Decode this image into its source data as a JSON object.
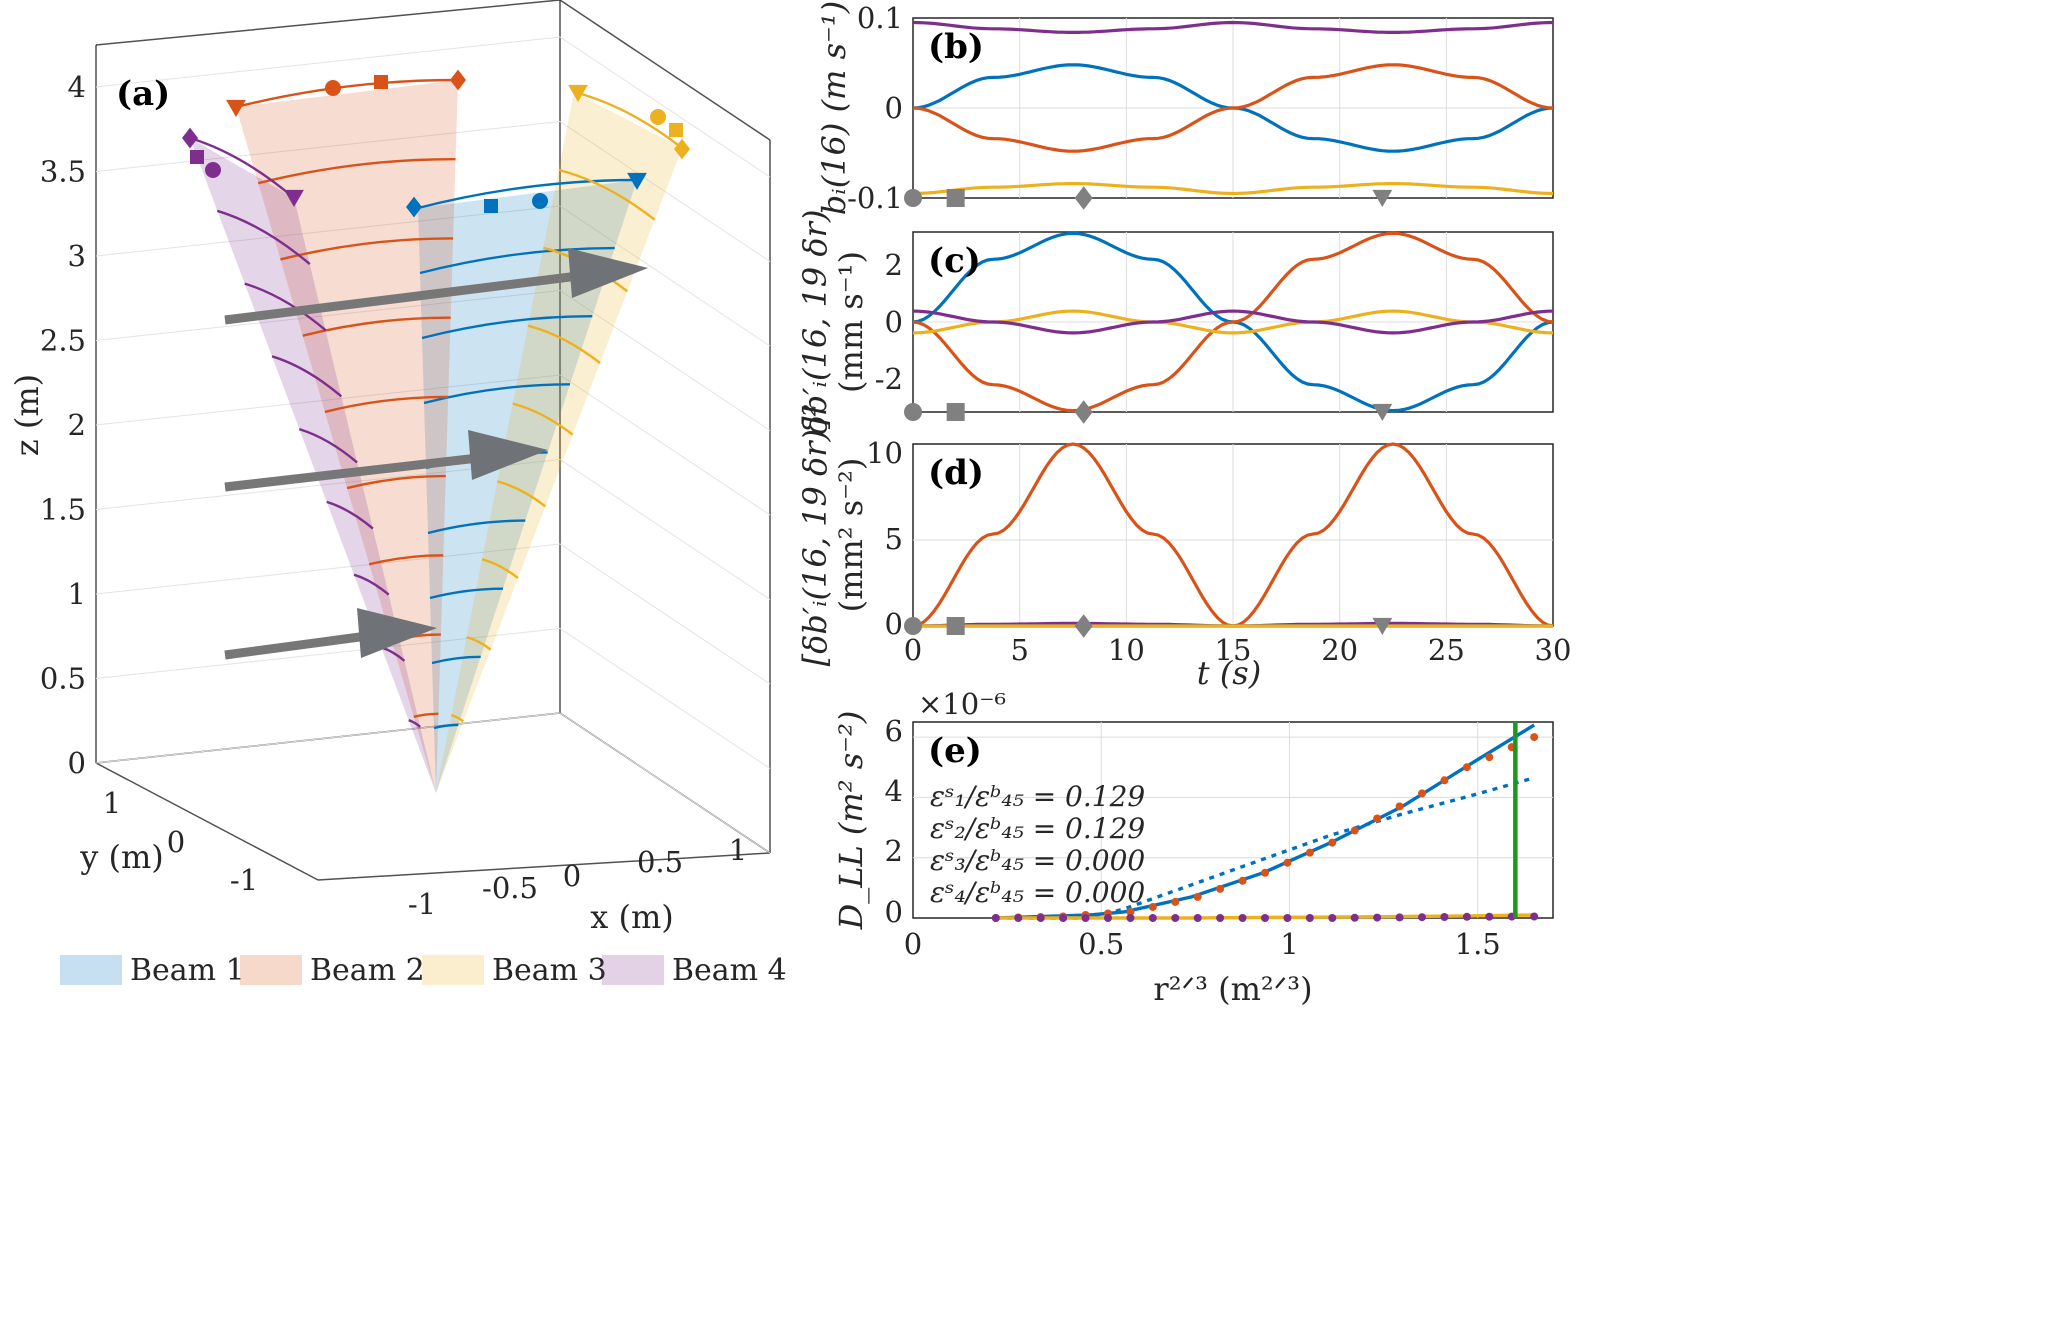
{
  "colors": {
    "beam1": "#0072BD",
    "beam2": "#D95319",
    "beam3": "#EDB120",
    "beam4": "#7E2F8E",
    "marker": "#808080",
    "vertical_line": "#1a9a1a"
  },
  "panel_a": {
    "label": "(a)",
    "xlabel": "x (m)",
    "ylabel": "y (m)",
    "zlabel": "z (m)",
    "xticks": [
      "-1",
      "-0.5",
      "0",
      "0.5",
      "1"
    ],
    "yticks": [
      "1",
      "0",
      "-1"
    ],
    "zticks": [
      "0",
      "0.5",
      "1",
      "1.5",
      "2",
      "2.5",
      "3",
      "3.5",
      "4"
    ],
    "legend": [
      "Beam 1",
      "Beam 2",
      "Beam 3",
      "Beam 4"
    ]
  },
  "panel_b": {
    "label": "(b)",
    "ylabel": "bᵢ(16) (m s⁻¹)",
    "yticks": [
      "0.1",
      "0",
      "-0.1"
    ]
  },
  "panel_c": {
    "label": "(c)",
    "ylabel_line1": "δb′ᵢ(16, 19 δr)",
    "ylabel_line2": "(mm s⁻¹)",
    "yticks": [
      "2",
      "0",
      "-2"
    ]
  },
  "panel_d": {
    "label": "(d)",
    "ylabel_line1": "[δb′ᵢ(16, 19 δr)]²",
    "ylabel_line2": "(mm² s⁻²)",
    "yticks": [
      "10",
      "5",
      "0"
    ],
    "xticks": [
      "0",
      "5",
      "10",
      "15",
      "20",
      "25",
      "30"
    ],
    "xlabel": "t (s)"
  },
  "panel_e": {
    "label": "(e)",
    "exponent": "×10⁻⁶",
    "ylabel": "D_LL (m² s⁻²)",
    "xlabel": "r²ᐟ³ (m²ᐟ³)",
    "yticks": [
      "6",
      "4",
      "2",
      "0"
    ],
    "xticks": [
      "0",
      "0.5",
      "1",
      "1.5"
    ],
    "ratios": [
      "εˢ₁/εᵇ₄₅ = 0.129",
      "εˢ₂/εᵇ₄₅ = 0.129",
      "εˢ₃/εᵇ₄₅ = 0.000",
      "εˢ₄/εᵇ₄₅ = 0.000"
    ]
  },
  "chart_data": [
    {
      "panel": "a",
      "type": "scatter",
      "title": "",
      "description_3d": "Four conical beams from origin to z about 4 m, with range-gate arcs and three grey mean-flow arrows at z about 0.8, 1.7, 2.7 m",
      "xlim": [
        -1.2,
        1.2
      ],
      "ylim": [
        -1.2,
        1.2
      ],
      "zlim": [
        0,
        4.2
      ],
      "series": [
        {
          "name": "Beam 1"
        },
        {
          "name": "Beam 2"
        },
        {
          "name": "Beam 3"
        },
        {
          "name": "Beam 4"
        }
      ]
    },
    {
      "panel": "b",
      "type": "line",
      "xlim": [
        0,
        30
      ],
      "ylim": [
        -0.1,
        0.1
      ],
      "x": [
        0,
        3.75,
        7.5,
        11.25,
        15,
        18.75,
        22.5,
        26.25,
        30
      ],
      "series": [
        {
          "color": "beam1",
          "values": [
            0,
            0.034,
            0.048,
            0.034,
            0,
            -0.034,
            -0.048,
            -0.034,
            0
          ]
        },
        {
          "color": "beam2",
          "values": [
            0,
            -0.034,
            -0.048,
            -0.034,
            0,
            0.034,
            0.048,
            0.034,
            0
          ]
        },
        {
          "color": "beam3",
          "values": [
            -0.095,
            -0.088,
            -0.084,
            -0.088,
            -0.095,
            -0.088,
            -0.084,
            -0.088,
            -0.095
          ]
        },
        {
          "color": "beam4",
          "values": [
            0.095,
            0.088,
            0.084,
            0.088,
            0.095,
            0.088,
            0.084,
            0.088,
            0.095
          ]
        }
      ],
      "markers": [
        {
          "shape": "circle",
          "t": 0
        },
        {
          "shape": "square",
          "t": 2
        },
        {
          "shape": "diamond",
          "t": 8
        },
        {
          "shape": "triangle",
          "t": 22
        }
      ]
    },
    {
      "panel": "c",
      "type": "line",
      "xlim": [
        0,
        30
      ],
      "ylim": [
        -3.3,
        3.3
      ],
      "x": [
        0,
        3.75,
        7.5,
        11.25,
        15,
        18.75,
        22.5,
        26.25,
        30
      ],
      "series": [
        {
          "color": "beam1",
          "values": [
            0,
            2.3,
            3.25,
            2.3,
            0,
            -2.3,
            -3.25,
            -2.3,
            0
          ]
        },
        {
          "color": "beam2",
          "values": [
            0,
            -2.3,
            -3.25,
            -2.3,
            0,
            2.3,
            3.25,
            2.3,
            0
          ]
        },
        {
          "color": "beam3",
          "values": [
            -0.4,
            0,
            0.4,
            0,
            -0.4,
            0,
            0.4,
            0,
            -0.4
          ]
        },
        {
          "color": "beam4",
          "values": [
            0.4,
            0,
            -0.4,
            0,
            0.4,
            0,
            -0.4,
            0,
            0.4
          ]
        }
      ]
    },
    {
      "panel": "d",
      "type": "line",
      "xlim": [
        0,
        30
      ],
      "ylim": [
        0,
        10.5
      ],
      "x": [
        0,
        3.75,
        7.5,
        11.25,
        15,
        18.75,
        22.5,
        26.25,
        30
      ],
      "series": [
        {
          "color": "beam2",
          "values": [
            0,
            5.3,
            10.5,
            5.3,
            0,
            5.3,
            10.5,
            5.3,
            0
          ]
        },
        {
          "color": "beam4",
          "values": [
            0,
            0.1,
            0.15,
            0.1,
            0,
            0.1,
            0.15,
            0.1,
            0
          ]
        },
        {
          "color": "beam1",
          "values": [
            0,
            0,
            0,
            0,
            0,
            0,
            0,
            0,
            0
          ]
        },
        {
          "color": "beam3",
          "values": [
            0,
            0,
            0,
            0,
            0,
            0,
            0,
            0,
            0
          ]
        }
      ]
    },
    {
      "panel": "e",
      "type": "line",
      "xlim": [
        0,
        1.7
      ],
      "ylim": [
        0,
        6.5
      ],
      "y_scale_exponent": -6,
      "x": [
        0.22,
        0.47,
        0.56,
        0.74,
        0.93,
        1.11,
        1.3,
        1.48,
        1.65
      ],
      "series": [
        {
          "color": "beam1",
          "style": "solid",
          "values": [
            0,
            0.1,
            0.2,
            0.7,
            1.5,
            2.5,
            3.7,
            5.1,
            6.4
          ]
        },
        {
          "color": "beam1",
          "style": "dotted",
          "values": [
            0,
            0,
            0.3,
            1.1,
            1.95,
            2.75,
            3.45,
            4.05,
            4.65
          ]
        },
        {
          "color": "beam2",
          "style": "markers",
          "values": [
            0,
            0.05,
            0.2,
            0.7,
            1.5,
            2.5,
            3.7,
            5.0,
            6.0
          ]
        },
        {
          "color": "beam3",
          "style": "solid",
          "values": [
            0,
            0,
            0,
            0,
            0.02,
            0.03,
            0.05,
            0.07,
            0.1
          ]
        },
        {
          "color": "beam4",
          "style": "markers",
          "values": [
            0,
            0,
            0,
            0,
            0,
            0,
            0.02,
            0.04,
            0.05
          ]
        }
      ],
      "vline_x": 1.6
    }
  ]
}
